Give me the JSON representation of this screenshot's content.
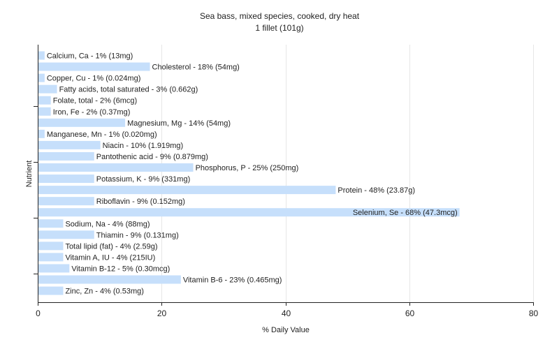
{
  "chart_data": {
    "type": "bar",
    "orientation": "horizontal",
    "title": "Sea bass, mixed species, cooked, dry heat",
    "subtitle": "1 fillet (101g)",
    "xlabel": "% Daily Value",
    "ylabel": "Nutrient",
    "xlim": [
      0,
      80
    ],
    "xticks": [
      0,
      20,
      40,
      60,
      80
    ],
    "grid": true,
    "bar_color": "#c6dffb",
    "categories": [
      "Calcium, Ca - 1% (13mg)",
      "Cholesterol - 18% (54mg)",
      "Copper, Cu - 1% (0.024mg)",
      "Fatty acids, total saturated - 3% (0.662g)",
      "Folate, total - 2% (6mcg)",
      "Iron, Fe - 2% (0.37mg)",
      "Magnesium, Mg - 14% (54mg)",
      "Manganese, Mn - 1% (0.020mg)",
      "Niacin - 10% (1.919mg)",
      "Pantothenic acid - 9% (0.879mg)",
      "Phosphorus, P - 25% (250mg)",
      "Potassium, K - 9% (331mg)",
      "Protein - 48% (23.87g)",
      "Riboflavin - 9% (0.152mg)",
      "Selenium, Se - 68% (47.3mcg)",
      "Sodium, Na - 4% (88mg)",
      "Thiamin - 9% (0.131mg)",
      "Total lipid (fat) - 4% (2.59g)",
      "Vitamin A, IU - 4% (215IU)",
      "Vitamin B-12 - 5% (0.30mcg)",
      "Vitamin B-6 - 23% (0.465mg)",
      "Zinc, Zn - 4% (0.53mg)"
    ],
    "values": [
      1,
      18,
      1,
      3,
      2,
      2,
      14,
      1,
      10,
      9,
      25,
      9,
      48,
      9,
      68,
      4,
      9,
      4,
      4,
      5,
      23,
      4
    ]
  }
}
